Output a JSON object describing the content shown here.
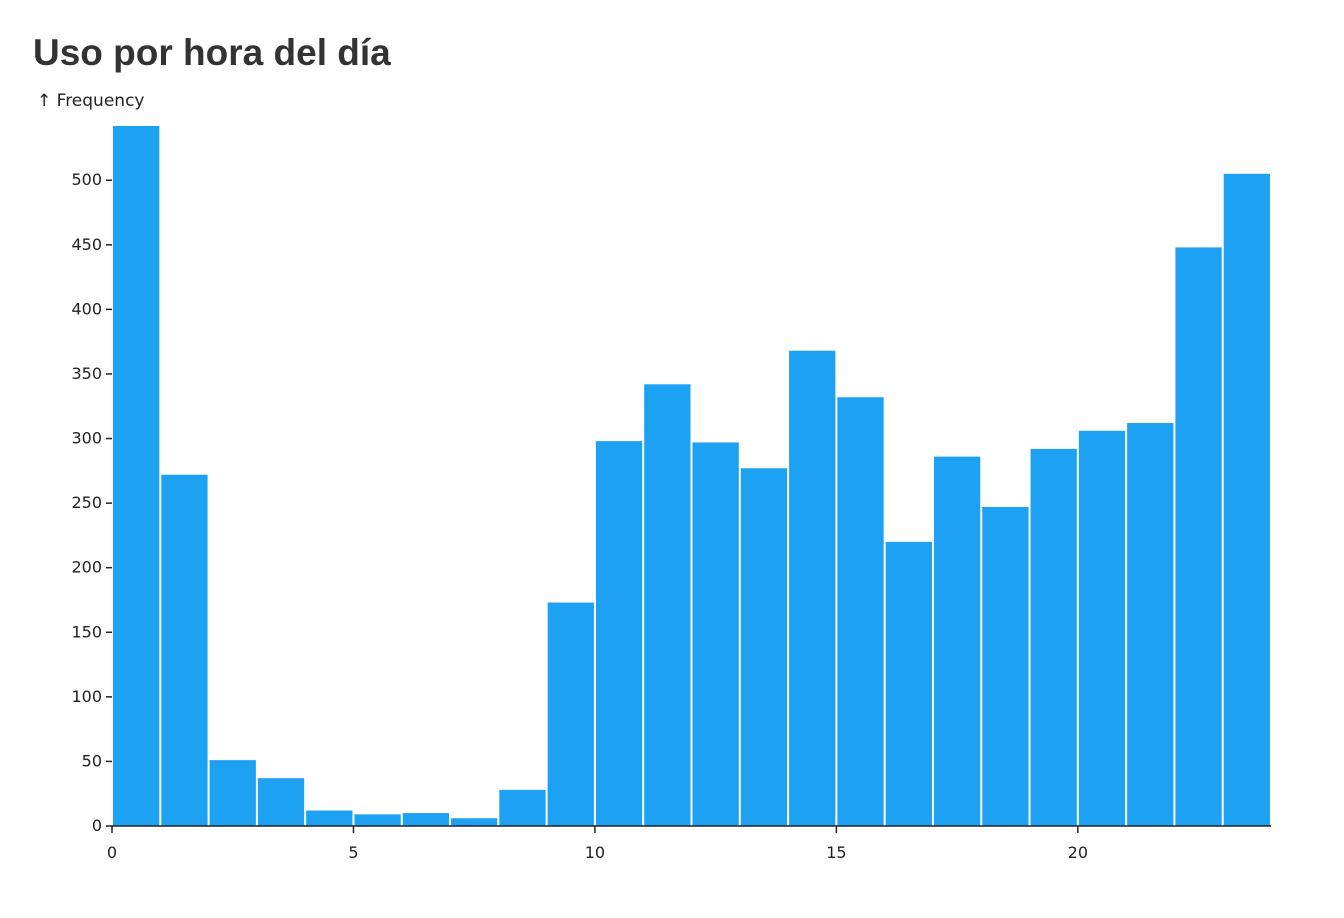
{
  "chart_data": {
    "type": "bar",
    "title": "Uso por hora del día",
    "ylabel": "↑ Frequency",
    "xlabel": "",
    "bar_color": "#1da1f2",
    "bin_width": 1,
    "bins": [
      0,
      1,
      2,
      3,
      4,
      5,
      6,
      7,
      8,
      9,
      10,
      11,
      12,
      13,
      14,
      15,
      16,
      17,
      18,
      19,
      20,
      21,
      22,
      23
    ],
    "values": [
      542,
      272,
      51,
      37,
      12,
      9,
      10,
      6,
      28,
      173,
      298,
      342,
      297,
      277,
      368,
      332,
      220,
      286,
      247,
      292,
      306,
      312,
      448,
      505
    ],
    "xlim": [
      0,
      24
    ],
    "ylim": [
      0,
      542
    ],
    "xticks": [
      0,
      5,
      10,
      15,
      20
    ],
    "yticks": [
      0,
      50,
      100,
      150,
      200,
      250,
      300,
      350,
      400,
      450,
      500
    ],
    "grid": false
  }
}
